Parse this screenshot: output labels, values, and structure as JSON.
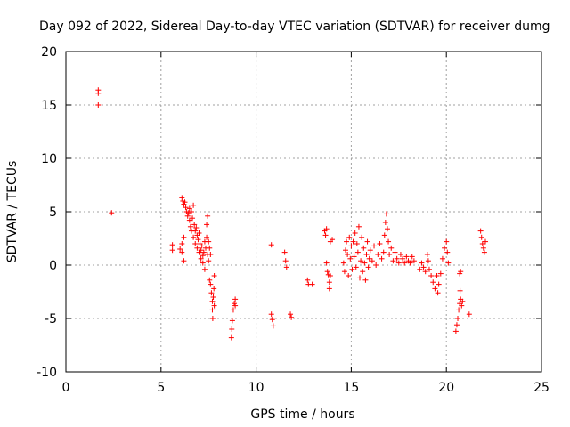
{
  "chart_data": {
    "type": "scatter",
    "title": "Day 092 of 2022, Sidereal Day-to-day VTEC variation (SDTVAR) for receiver dumg",
    "xlabel": "GPS time / hours",
    "ylabel": "SDTVAR / TECUs",
    "xlim": [
      0,
      25
    ],
    "ylim": [
      -10,
      20
    ],
    "xticks": [
      0,
      5,
      10,
      15,
      20,
      25
    ],
    "yticks": [
      -10,
      -5,
      0,
      5,
      10,
      15,
      20
    ],
    "grid": true,
    "marker": "+",
    "color": "#ff0000",
    "series": [
      {
        "name": "SDTVAR",
        "points": [
          [
            1.7,
            16.4
          ],
          [
            1.7,
            16.1
          ],
          [
            1.7,
            15.0
          ],
          [
            2.4,
            4.9
          ],
          [
            5.6,
            1.9
          ],
          [
            5.6,
            1.4
          ],
          [
            6.0,
            1.5
          ],
          [
            6.1,
            2.0
          ],
          [
            6.1,
            1.2
          ],
          [
            6.2,
            0.4
          ],
          [
            6.2,
            2.6
          ],
          [
            6.1,
            6.3
          ],
          [
            6.15,
            6.0
          ],
          [
            6.2,
            5.7
          ],
          [
            6.25,
            5.9
          ],
          [
            6.3,
            5.4
          ],
          [
            6.35,
            5.0
          ],
          [
            6.4,
            4.6
          ],
          [
            6.45,
            4.9
          ],
          [
            6.5,
            5.3
          ],
          [
            6.5,
            4.2
          ],
          [
            6.55,
            3.6
          ],
          [
            6.6,
            5.0
          ],
          [
            6.6,
            3.2
          ],
          [
            6.65,
            4.4
          ],
          [
            6.7,
            5.6
          ],
          [
            6.7,
            2.6
          ],
          [
            6.75,
            3.8
          ],
          [
            6.8,
            3.2
          ],
          [
            6.8,
            2.0
          ],
          [
            6.85,
            3.5
          ],
          [
            6.9,
            2.8
          ],
          [
            6.9,
            1.6
          ],
          [
            6.95,
            2.4
          ],
          [
            7.0,
            3.0
          ],
          [
            7.0,
            1.2
          ],
          [
            7.05,
            2.0
          ],
          [
            7.1,
            1.4
          ],
          [
            7.1,
            0.6
          ],
          [
            7.15,
            1.8
          ],
          [
            7.2,
            0.9
          ],
          [
            7.2,
            0.2
          ],
          [
            7.25,
            1.2
          ],
          [
            7.3,
            2.2
          ],
          [
            7.3,
            -0.4
          ],
          [
            7.35,
            1.6
          ],
          [
            7.4,
            3.8
          ],
          [
            7.4,
            2.6
          ],
          [
            7.45,
            4.6
          ],
          [
            7.45,
            1.0
          ],
          [
            7.5,
            2.2
          ],
          [
            7.5,
            0.4
          ],
          [
            7.55,
            1.6
          ],
          [
            7.55,
            -1.4
          ],
          [
            7.6,
            1.0
          ],
          [
            7.6,
            -1.8
          ],
          [
            7.65,
            -2.6
          ],
          [
            7.7,
            -3.4
          ],
          [
            7.7,
            -4.2
          ],
          [
            7.72,
            -5.0
          ],
          [
            7.75,
            -3.0
          ],
          [
            7.78,
            -2.2
          ],
          [
            7.8,
            -3.8
          ],
          [
            7.8,
            -1.0
          ],
          [
            8.7,
            -6.8
          ],
          [
            8.72,
            -6.0
          ],
          [
            8.75,
            -5.2
          ],
          [
            8.8,
            -4.2
          ],
          [
            8.85,
            -3.6
          ],
          [
            8.9,
            -3.8
          ],
          [
            8.9,
            -3.2
          ],
          [
            10.8,
            1.9
          ],
          [
            10.8,
            -4.6
          ],
          [
            10.85,
            -5.1
          ],
          [
            10.9,
            -5.7
          ],
          [
            11.5,
            1.2
          ],
          [
            11.55,
            0.4
          ],
          [
            11.6,
            -0.2
          ],
          [
            11.8,
            -4.6
          ],
          [
            11.85,
            -4.9
          ],
          [
            12.7,
            -1.4
          ],
          [
            12.75,
            -1.8
          ],
          [
            12.95,
            -1.8
          ],
          [
            13.6,
            3.2
          ],
          [
            13.65,
            2.8
          ],
          [
            13.7,
            3.4
          ],
          [
            13.7,
            0.2
          ],
          [
            13.75,
            -0.6
          ],
          [
            13.8,
            -0.9
          ],
          [
            13.85,
            -1.6
          ],
          [
            13.85,
            -2.2
          ],
          [
            13.9,
            -1.0
          ],
          [
            13.9,
            2.2
          ],
          [
            14.0,
            2.4
          ],
          [
            14.6,
            0.2
          ],
          [
            14.65,
            -0.6
          ],
          [
            14.7,
            1.4
          ],
          [
            14.75,
            2.2
          ],
          [
            14.8,
            1.0
          ],
          [
            14.85,
            -1.0
          ],
          [
            14.9,
            2.6
          ],
          [
            14.95,
            0.6
          ],
          [
            15.0,
            1.8
          ],
          [
            15.05,
            -0.4
          ],
          [
            15.1,
            2.2
          ],
          [
            15.15,
            0.8
          ],
          [
            15.2,
            3.0
          ],
          [
            15.25,
            -0.2
          ],
          [
            15.3,
            2.0
          ],
          [
            15.35,
            1.2
          ],
          [
            15.4,
            3.6
          ],
          [
            15.45,
            -1.2
          ],
          [
            15.5,
            0.4
          ],
          [
            15.55,
            2.6
          ],
          [
            15.6,
            -0.6
          ],
          [
            15.65,
            1.6
          ],
          [
            15.7,
            0.2
          ],
          [
            15.75,
            -1.4
          ],
          [
            15.8,
            1.0
          ],
          [
            15.85,
            2.2
          ],
          [
            15.9,
            -0.2
          ],
          [
            15.95,
            0.6
          ],
          [
            16.0,
            1.4
          ],
          [
            16.1,
            0.4
          ],
          [
            16.2,
            1.8
          ],
          [
            16.3,
            0.0
          ],
          [
            16.4,
            1.0
          ],
          [
            16.5,
            2.0
          ],
          [
            16.6,
            0.6
          ],
          [
            16.7,
            1.2
          ],
          [
            16.75,
            2.8
          ],
          [
            16.8,
            4.0
          ],
          [
            16.85,
            4.8
          ],
          [
            16.9,
            3.4
          ],
          [
            16.95,
            2.2
          ],
          [
            17.0,
            1.0
          ],
          [
            17.1,
            1.6
          ],
          [
            17.2,
            0.4
          ],
          [
            17.3,
            1.2
          ],
          [
            17.4,
            0.6
          ],
          [
            17.5,
            0.2
          ],
          [
            17.6,
            1.0
          ],
          [
            17.7,
            0.6
          ],
          [
            17.8,
            0.2
          ],
          [
            17.9,
            0.8
          ],
          [
            18.0,
            0.4
          ],
          [
            18.1,
            0.2
          ],
          [
            18.2,
            0.8
          ],
          [
            18.3,
            0.4
          ],
          [
            18.6,
            -0.4
          ],
          [
            18.7,
            0.2
          ],
          [
            18.8,
            -0.2
          ],
          [
            18.9,
            -0.6
          ],
          [
            19.0,
            1.0
          ],
          [
            19.05,
            0.4
          ],
          [
            19.1,
            -0.4
          ],
          [
            19.2,
            -1.0
          ],
          [
            19.3,
            -1.6
          ],
          [
            19.4,
            -2.2
          ],
          [
            19.5,
            -1.0
          ],
          [
            19.55,
            -2.6
          ],
          [
            19.6,
            -1.8
          ],
          [
            19.7,
            -0.8
          ],
          [
            19.8,
            0.6
          ],
          [
            19.9,
            1.6
          ],
          [
            20.0,
            2.2
          ],
          [
            20.05,
            1.2
          ],
          [
            20.1,
            0.2
          ],
          [
            20.5,
            -6.2
          ],
          [
            20.55,
            -5.6
          ],
          [
            20.6,
            -5.0
          ],
          [
            20.65,
            -4.2
          ],
          [
            20.7,
            -3.6
          ],
          [
            20.72,
            -2.4
          ],
          [
            20.75,
            -3.2
          ],
          [
            20.8,
            -3.8
          ],
          [
            20.85,
            -3.4
          ],
          [
            20.7,
            -0.8
          ],
          [
            20.75,
            -0.6
          ],
          [
            21.2,
            -4.6
          ],
          [
            21.8,
            3.2
          ],
          [
            21.85,
            2.6
          ],
          [
            21.9,
            2.0
          ],
          [
            21.95,
            1.6
          ],
          [
            22.0,
            1.2
          ],
          [
            22.05,
            2.2
          ]
        ]
      }
    ]
  }
}
